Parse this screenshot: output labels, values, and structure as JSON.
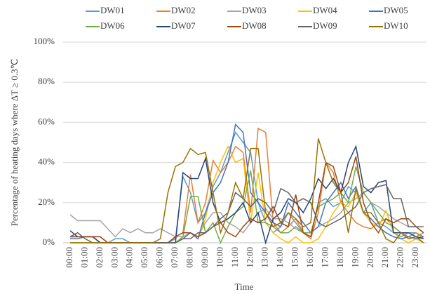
{
  "chart_data": {
    "type": "line",
    "y_label": "Percentage of heating days where ΔT ≥ 0.3℃",
    "x_label": "Time",
    "categories": [
      "00:00",
      null,
      "01:00",
      null,
      "02:00",
      null,
      "03:00",
      null,
      "04:00",
      null,
      "05:00",
      null,
      "06:00",
      null,
      "07:00",
      null,
      "08:00",
      null,
      "09:00",
      null,
      "10:00",
      null,
      "11:00",
      null,
      "12:00",
      null,
      "13:00",
      null,
      "14:00",
      null,
      "15:00",
      null,
      "16:00",
      null,
      "17:00",
      null,
      "18:00",
      null,
      "19:00",
      null,
      "20:00",
      null,
      "21:00",
      null,
      "22:00",
      null,
      "23:00",
      null
    ],
    "ylim": [
      0,
      100
    ],
    "yticks": [
      {
        "value": 0,
        "label": "0%"
      },
      {
        "value": 20,
        "label": "20%"
      },
      {
        "value": 40,
        "label": "40%"
      },
      {
        "value": 60,
        "label": "60%"
      },
      {
        "value": 80,
        "label": "80%"
      },
      {
        "value": 100,
        "label": "100%"
      }
    ],
    "grid": true,
    "legend": "top",
    "series": [
      {
        "name": "DW01",
        "color": "#5b9bd5",
        "values": [
          3,
          3,
          3,
          3,
          0,
          0,
          2,
          2,
          0,
          0,
          0,
          0,
          0,
          0,
          2,
          33,
          25,
          10,
          15,
          28,
          35,
          45,
          55,
          50,
          45,
          20,
          10,
          5,
          8,
          15,
          10,
          5,
          3,
          20,
          22,
          18,
          20,
          28,
          25,
          15,
          20,
          10,
          8,
          5,
          3,
          5,
          5,
          3
        ]
      },
      {
        "name": "DW02",
        "color": "#ed7d31",
        "values": [
          3,
          3,
          3,
          3,
          3,
          0,
          0,
          0,
          0,
          0,
          0,
          0,
          0,
          0,
          3,
          5,
          34,
          10,
          20,
          41,
          35,
          40,
          48,
          45,
          15,
          57,
          55,
          10,
          5,
          8,
          12,
          5,
          2,
          15,
          40,
          35,
          20,
          15,
          10,
          8,
          7,
          10,
          12,
          8,
          5,
          3,
          5,
          2
        ]
      },
      {
        "name": "DW03",
        "color": "#a5a5a5",
        "values": [
          14,
          11,
          11,
          11,
          11,
          7,
          3,
          7,
          5,
          7,
          5,
          5,
          7,
          5,
          3,
          3,
          5,
          3,
          10,
          15,
          15,
          10,
          8,
          5,
          10,
          15,
          17,
          12,
          12,
          10,
          7,
          5,
          5,
          8,
          10,
          12,
          15,
          20,
          22,
          25,
          20,
          18,
          15,
          12,
          10,
          8,
          8,
          5
        ]
      },
      {
        "name": "DW04",
        "color": "#ffc000",
        "values": [
          0,
          0,
          0,
          0,
          0,
          0,
          0,
          0,
          0,
          0,
          0,
          0,
          0,
          0,
          0,
          2,
          5,
          2,
          12,
          30,
          40,
          48,
          40,
          42,
          10,
          35,
          10,
          5,
          2,
          0,
          3,
          0,
          0,
          2,
          8,
          15,
          20,
          18,
          25,
          15,
          10,
          8,
          16,
          5,
          2,
          0,
          2,
          0
        ]
      },
      {
        "name": "DW05",
        "color": "#4472c4",
        "values": [
          2,
          2,
          3,
          3,
          0,
          0,
          0,
          0,
          0,
          0,
          0,
          0,
          0,
          0,
          0,
          2,
          5,
          2,
          15,
          25,
          30,
          40,
          59,
          55,
          25,
          20,
          15,
          10,
          8,
          20,
          15,
          10,
          5,
          8,
          20,
          25,
          30,
          22,
          28,
          15,
          12,
          8,
          5,
          3,
          2,
          3,
          2,
          3
        ]
      },
      {
        "name": "DW06",
        "color": "#70ad47",
        "values": [
          0,
          0,
          0,
          0,
          0,
          0,
          0,
          0,
          0,
          0,
          0,
          0,
          0,
          0,
          0,
          3,
          23,
          23,
          5,
          10,
          0,
          8,
          15,
          18,
          36,
          10,
          10,
          8,
          5,
          5,
          8,
          5,
          5,
          18,
          20,
          22,
          25,
          20,
          38,
          25,
          20,
          15,
          10,
          8,
          5,
          2,
          3,
          5
        ]
      },
      {
        "name": "DW07",
        "color": "#264478",
        "values": [
          6,
          3,
          3,
          3,
          0,
          0,
          0,
          0,
          0,
          0,
          0,
          0,
          0,
          0,
          0,
          35,
          32,
          32,
          42,
          20,
          10,
          12,
          15,
          20,
          10,
          15,
          0,
          12,
          15,
          22,
          20,
          15,
          22,
          32,
          27,
          32,
          25,
          40,
          48,
          28,
          25,
          30,
          31,
          5,
          5,
          5,
          3,
          2
        ]
      },
      {
        "name": "DW08",
        "color": "#9e480e",
        "values": [
          3,
          3,
          3,
          3,
          3,
          0,
          0,
          0,
          0,
          0,
          0,
          0,
          0,
          0,
          3,
          5,
          5,
          3,
          5,
          8,
          10,
          5,
          3,
          8,
          12,
          10,
          12,
          18,
          10,
          8,
          24,
          5,
          3,
          20,
          40,
          38,
          25,
          30,
          43,
          20,
          10,
          5,
          12,
          10,
          12,
          12,
          8,
          5
        ]
      },
      {
        "name": "DW09",
        "color": "#636363",
        "values": [
          3,
          5,
          2,
          0,
          0,
          0,
          0,
          0,
          0,
          0,
          0,
          0,
          0,
          0,
          0,
          2,
          2,
          5,
          5,
          8,
          12,
          15,
          25,
          22,
          18,
          22,
          20,
          15,
          27,
          25,
          20,
          22,
          20,
          10,
          8,
          10,
          12,
          15,
          18,
          25,
          27,
          28,
          29,
          22,
          22,
          8,
          8,
          8
        ]
      },
      {
        "name": "DW10",
        "color": "#997300",
        "values": [
          0,
          0,
          0,
          0,
          0,
          0,
          0,
          0,
          0,
          0,
          0,
          0,
          2,
          25,
          38,
          40,
          47,
          44,
          45,
          25,
          5,
          15,
          30,
          22,
          47,
          47,
          15,
          8,
          10,
          15,
          12,
          8,
          10,
          52,
          40,
          30,
          25,
          5,
          27,
          15,
          15,
          10,
          2,
          0,
          5,
          2,
          3,
          0
        ]
      }
    ]
  }
}
